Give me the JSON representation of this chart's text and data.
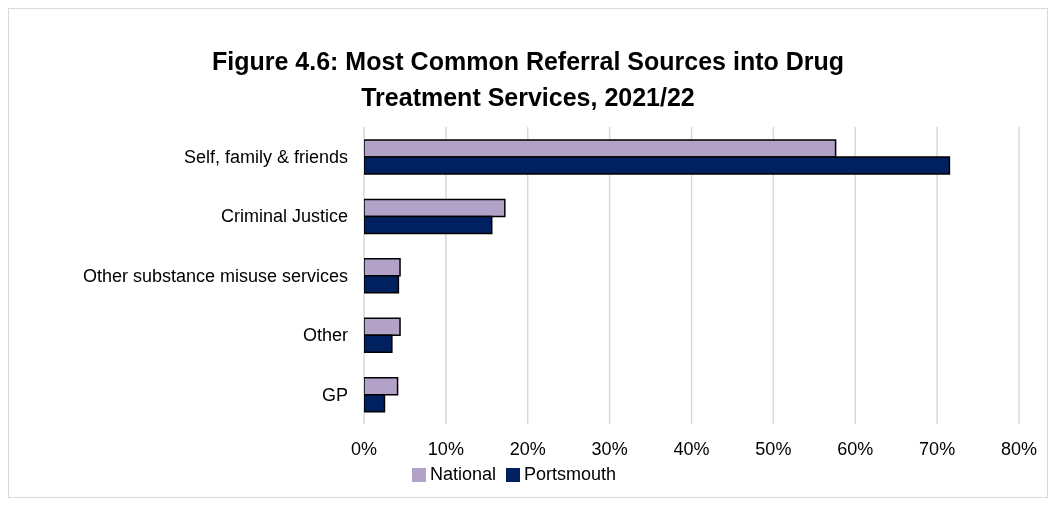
{
  "chart_data": {
    "type": "bar",
    "orientation": "horizontal",
    "title": "Figure 4.6: Most Common Referral Sources into Drug Treatment Services, 2021/22",
    "categories": [
      "Self, family & friends",
      "Criminal Justice",
      "Other substance misuse services",
      "Other",
      "GP"
    ],
    "series": [
      {
        "name": "National",
        "color": "#b3a2c7",
        "values": [
          57.6,
          17.2,
          4.4,
          4.4,
          4.1
        ]
      },
      {
        "name": "Portsmouth",
        "color": "#002060",
        "values": [
          71.5,
          15.6,
          4.2,
          3.4,
          2.5
        ]
      }
    ],
    "xlim": [
      0,
      80
    ],
    "xticks": [
      {
        "value": 0,
        "label": "0%"
      },
      {
        "value": 10,
        "label": "10%"
      },
      {
        "value": 20,
        "label": "20%"
      },
      {
        "value": 30,
        "label": "30%"
      },
      {
        "value": 40,
        "label": "40%"
      },
      {
        "value": 50,
        "label": "50%"
      },
      {
        "value": 60,
        "label": "60%"
      },
      {
        "value": 70,
        "label": "70%"
      },
      {
        "value": 80,
        "label": "80%"
      }
    ],
    "grid": "x",
    "legend": "bottom"
  }
}
